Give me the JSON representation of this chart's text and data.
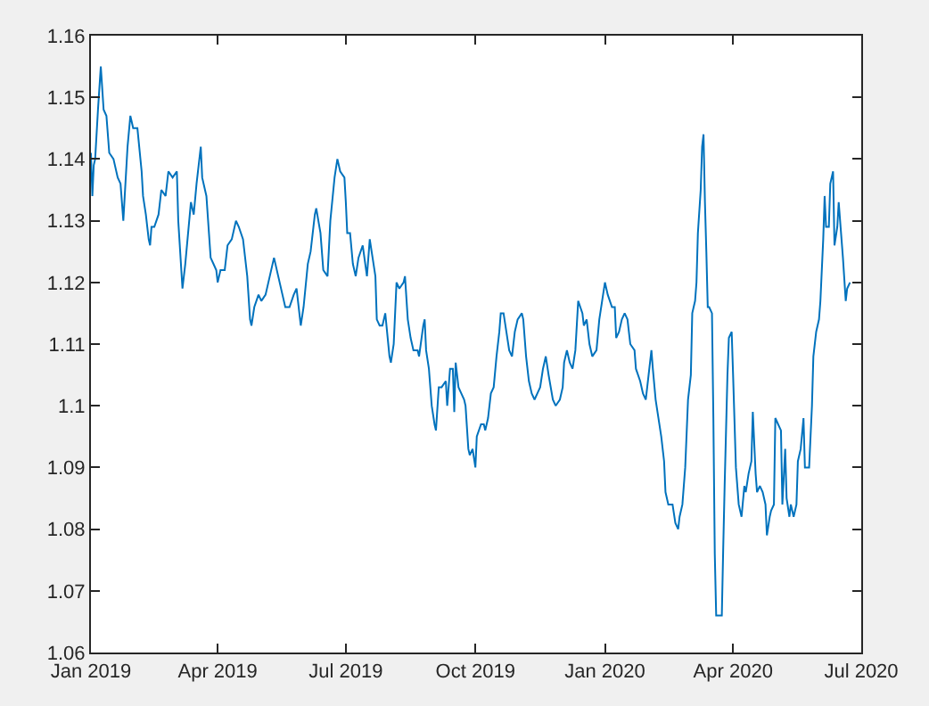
{
  "chart_data": {
    "type": "line",
    "xlim": [
      "2019-01-01",
      "2020-07-01"
    ],
    "ylim": [
      1.06,
      1.16
    ],
    "xticks": [
      {
        "value": "2019-01-01",
        "label": "Jan 2019"
      },
      {
        "value": "2019-04-01",
        "label": "Apr 2019"
      },
      {
        "value": "2019-07-01",
        "label": "Jul 2019"
      },
      {
        "value": "2019-10-01",
        "label": "Oct 2019"
      },
      {
        "value": "2020-01-01",
        "label": "Jan 2020"
      },
      {
        "value": "2020-04-01",
        "label": "Apr 2020"
      },
      {
        "value": "2020-07-01",
        "label": "Jul 2020"
      }
    ],
    "yticks": [
      1.06,
      1.07,
      1.08,
      1.09,
      1.1,
      1.11,
      1.12,
      1.13,
      1.14,
      1.15,
      1.16
    ],
    "marker": "none",
    "line_style": "solid",
    "x": [
      "2019-01-01",
      "2019-01-02",
      "2019-01-03",
      "2019-01-04",
      "2019-01-06",
      "2019-01-08",
      "2019-01-10",
      "2019-01-12",
      "2019-01-14",
      "2019-01-17",
      "2019-01-20",
      "2019-01-22",
      "2019-01-24",
      "2019-01-25",
      "2019-01-27",
      "2019-01-29",
      "2019-01-31",
      "2019-02-03",
      "2019-02-06",
      "2019-02-07",
      "2019-02-09",
      "2019-02-11",
      "2019-02-12",
      "2019-02-13",
      "2019-02-15",
      "2019-02-18",
      "2019-02-20",
      "2019-02-23",
      "2019-02-25",
      "2019-02-28",
      "2019-03-03",
      "2019-03-04",
      "2019-03-07",
      "2019-03-09",
      "2019-03-11",
      "2019-03-13",
      "2019-03-15",
      "2019-03-17",
      "2019-03-20",
      "2019-03-21",
      "2019-03-24",
      "2019-03-27",
      "2019-03-29",
      "2019-03-31",
      "2019-04-01",
      "2019-04-03",
      "2019-04-06",
      "2019-04-08",
      "2019-04-11",
      "2019-04-14",
      "2019-04-16",
      "2019-04-19",
      "2019-04-22",
      "2019-04-24",
      "2019-04-25",
      "2019-04-27",
      "2019-04-30",
      "2019-05-02",
      "2019-05-05",
      "2019-05-08",
      "2019-05-11",
      "2019-05-14",
      "2019-05-17",
      "2019-05-19",
      "2019-05-22",
      "2019-05-25",
      "2019-05-27",
      "2019-05-30",
      "2019-06-01",
      "2019-06-04",
      "2019-06-06",
      "2019-06-09",
      "2019-06-10",
      "2019-06-13",
      "2019-06-15",
      "2019-06-18",
      "2019-06-20",
      "2019-06-23",
      "2019-06-25",
      "2019-06-27",
      "2019-06-30",
      "2019-07-01",
      "2019-07-02",
      "2019-07-04",
      "2019-07-06",
      "2019-07-08",
      "2019-07-10",
      "2019-07-13",
      "2019-07-16",
      "2019-07-18",
      "2019-07-20",
      "2019-07-22",
      "2019-07-23",
      "2019-07-25",
      "2019-07-27",
      "2019-07-29",
      "2019-08-01",
      "2019-08-02",
      "2019-08-04",
      "2019-08-06",
      "2019-08-08",
      "2019-08-11",
      "2019-08-12",
      "2019-08-14",
      "2019-08-16",
      "2019-08-18",
      "2019-08-21",
      "2019-08-22",
      "2019-08-25",
      "2019-08-26",
      "2019-08-27",
      "2019-08-29",
      "2019-08-30",
      "2019-08-31",
      "2019-09-02",
      "2019-09-03",
      "2019-09-05",
      "2019-09-07",
      "2019-09-10",
      "2019-09-11",
      "2019-09-13",
      "2019-09-15",
      "2019-09-16",
      "2019-09-17",
      "2019-09-19",
      "2019-09-21",
      "2019-09-23",
      "2019-09-24",
      "2019-09-26",
      "2019-09-27",
      "2019-09-29",
      "2019-10-01",
      "2019-10-02",
      "2019-10-05",
      "2019-10-07",
      "2019-10-08",
      "2019-10-10",
      "2019-10-12",
      "2019-10-14",
      "2019-10-16",
      "2019-10-18",
      "2019-10-19",
      "2019-10-21",
      "2019-10-23",
      "2019-10-25",
      "2019-10-27",
      "2019-10-29",
      "2019-10-31",
      "2019-11-03",
      "2019-11-04",
      "2019-11-06",
      "2019-11-08",
      "2019-11-10",
      "2019-11-12",
      "2019-11-14",
      "2019-11-16",
      "2019-11-18",
      "2019-11-20",
      "2019-11-22",
      "2019-11-25",
      "2019-11-27",
      "2019-11-30",
      "2019-12-02",
      "2019-12-03",
      "2019-12-05",
      "2019-12-07",
      "2019-12-09",
      "2019-12-11",
      "2019-12-13",
      "2019-12-16",
      "2019-12-17",
      "2019-12-19",
      "2019-12-21",
      "2019-12-23",
      "2019-12-26",
      "2019-12-28",
      "2019-12-30",
      "2020-01-01",
      "2020-01-03",
      "2020-01-06",
      "2020-01-08",
      "2020-01-09",
      "2020-01-11",
      "2020-01-13",
      "2020-01-15",
      "2020-01-17",
      "2020-01-19",
      "2020-01-22",
      "2020-01-23",
      "2020-01-26",
      "2020-01-28",
      "2020-01-30",
      "2020-02-01",
      "2020-02-03",
      "2020-02-04",
      "2020-02-06",
      "2020-02-08",
      "2020-02-10",
      "2020-02-12",
      "2020-02-13",
      "2020-02-15",
      "2020-02-18",
      "2020-02-20",
      "2020-02-22",
      "2020-02-23",
      "2020-02-25",
      "2020-02-27",
      "2020-02-29",
      "2020-03-02",
      "2020-03-03",
      "2020-03-05",
      "2020-03-06",
      "2020-03-07",
      "2020-03-09",
      "2020-03-10",
      "2020-03-11",
      "2020-03-12",
      "2020-03-13",
      "2020-03-14",
      "2020-03-15",
      "2020-03-17",
      "2020-03-18",
      "2020-03-19",
      "2020-03-20",
      "2020-03-24",
      "2020-03-25",
      "2020-03-26",
      "2020-03-28",
      "2020-03-29",
      "2020-03-31",
      "2020-04-01",
      "2020-04-03",
      "2020-04-05",
      "2020-04-07",
      "2020-04-09",
      "2020-04-10",
      "2020-04-12",
      "2020-04-14",
      "2020-04-15",
      "2020-04-17",
      "2020-04-18",
      "2020-04-20",
      "2020-04-22",
      "2020-04-24",
      "2020-04-25",
      "2020-04-27",
      "2020-04-28",
      "2020-04-30",
      "2020-05-01",
      "2020-05-03",
      "2020-05-05",
      "2020-05-06",
      "2020-05-08",
      "2020-05-09",
      "2020-05-11",
      "2020-05-12",
      "2020-05-14",
      "2020-05-16",
      "2020-05-17",
      "2020-05-19",
      "2020-05-21",
      "2020-05-22",
      "2020-05-25",
      "2020-05-27",
      "2020-05-28",
      "2020-05-30",
      "2020-06-01",
      "2020-06-02",
      "2020-06-04",
      "2020-06-05",
      "2020-06-06",
      "2020-06-08",
      "2020-06-09",
      "2020-06-11",
      "2020-06-12",
      "2020-06-14",
      "2020-06-15",
      "2020-06-17",
      "2020-06-18",
      "2020-06-20",
      "2020-06-21",
      "2020-06-23"
    ],
    "series": [
      {
        "color": "#0072bd",
        "values": [
          1.141,
          1.134,
          1.139,
          1.14,
          1.148,
          1.155,
          1.148,
          1.147,
          1.141,
          1.14,
          1.137,
          1.136,
          1.13,
          1.134,
          1.142,
          1.147,
          1.145,
          1.145,
          1.138,
          1.134,
          1.131,
          1.127,
          1.126,
          1.129,
          1.129,
          1.131,
          1.135,
          1.134,
          1.138,
          1.137,
          1.138,
          1.13,
          1.119,
          1.123,
          1.128,
          1.133,
          1.131,
          1.136,
          1.142,
          1.137,
          1.134,
          1.124,
          1.123,
          1.122,
          1.12,
          1.122,
          1.122,
          1.126,
          1.127,
          1.13,
          1.129,
          1.127,
          1.121,
          1.114,
          1.113,
          1.116,
          1.118,
          1.117,
          1.118,
          1.121,
          1.124,
          1.121,
          1.118,
          1.116,
          1.116,
          1.118,
          1.119,
          1.113,
          1.116,
          1.123,
          1.125,
          1.131,
          1.132,
          1.128,
          1.122,
          1.121,
          1.13,
          1.137,
          1.14,
          1.138,
          1.137,
          1.133,
          1.128,
          1.128,
          1.123,
          1.121,
          1.124,
          1.126,
          1.121,
          1.127,
          1.124,
          1.121,
          1.114,
          1.113,
          1.113,
          1.115,
          1.108,
          1.107,
          1.11,
          1.12,
          1.119,
          1.12,
          1.121,
          1.114,
          1.111,
          1.109,
          1.109,
          1.108,
          1.113,
          1.114,
          1.109,
          1.106,
          1.103,
          1.1,
          1.097,
          1.096,
          1.103,
          1.103,
          1.104,
          1.1,
          1.106,
          1.106,
          1.099,
          1.107,
          1.103,
          1.102,
          1.101,
          1.1,
          1.093,
          1.092,
          1.093,
          1.09,
          1.095,
          1.097,
          1.097,
          1.096,
          1.098,
          1.102,
          1.103,
          1.108,
          1.112,
          1.115,
          1.115,
          1.112,
          1.109,
          1.108,
          1.112,
          1.114,
          1.115,
          1.114,
          1.108,
          1.104,
          1.102,
          1.101,
          1.102,
          1.103,
          1.106,
          1.108,
          1.105,
          1.101,
          1.1,
          1.101,
          1.103,
          1.107,
          1.109,
          1.107,
          1.106,
          1.109,
          1.117,
          1.115,
          1.113,
          1.114,
          1.11,
          1.108,
          1.109,
          1.114,
          1.117,
          1.12,
          1.118,
          1.116,
          1.116,
          1.111,
          1.112,
          1.114,
          1.115,
          1.114,
          1.11,
          1.109,
          1.106,
          1.104,
          1.102,
          1.101,
          1.105,
          1.109,
          1.106,
          1.101,
          1.098,
          1.095,
          1.091,
          1.086,
          1.084,
          1.084,
          1.081,
          1.08,
          1.082,
          1.084,
          1.09,
          1.101,
          1.105,
          1.115,
          1.117,
          1.12,
          1.128,
          1.135,
          1.142,
          1.144,
          1.133,
          1.125,
          1.116,
          1.116,
          1.115,
          1.098,
          1.076,
          1.066,
          1.066,
          1.077,
          1.087,
          1.105,
          1.111,
          1.112,
          1.105,
          1.09,
          1.084,
          1.082,
          1.087,
          1.086,
          1.089,
          1.091,
          1.099,
          1.089,
          1.086,
          1.087,
          1.086,
          1.084,
          1.079,
          1.082,
          1.083,
          1.084,
          1.098,
          1.097,
          1.096,
          1.084,
          1.093,
          1.085,
          1.082,
          1.084,
          1.082,
          1.084,
          1.091,
          1.093,
          1.098,
          1.09,
          1.09,
          1.1,
          1.108,
          1.112,
          1.114,
          1.117,
          1.127,
          1.134,
          1.129,
          1.129,
          1.136,
          1.138,
          1.126,
          1.129,
          1.133,
          1.127,
          1.124,
          1.117,
          1.119,
          1.12
        ]
      }
    ]
  }
}
